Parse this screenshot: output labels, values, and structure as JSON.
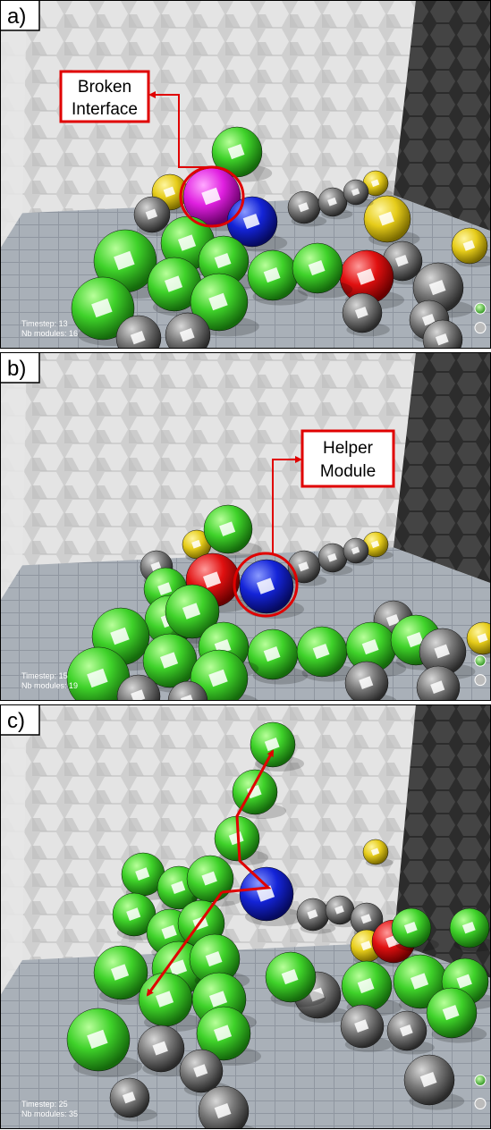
{
  "panels": [
    {
      "label": "a)",
      "annotation": [
        "Broken",
        "Interface"
      ],
      "status": [
        "Timestep: 13",
        "Nb modules: 16"
      ]
    },
    {
      "label": "b)",
      "annotation": [
        "Helper",
        "Module"
      ],
      "status": [
        "Timestep: 15",
        "Nb modules: 19"
      ]
    },
    {
      "label": "c)",
      "status": [
        "Timestep: 25",
        "Nb modules: 35"
      ]
    }
  ]
}
